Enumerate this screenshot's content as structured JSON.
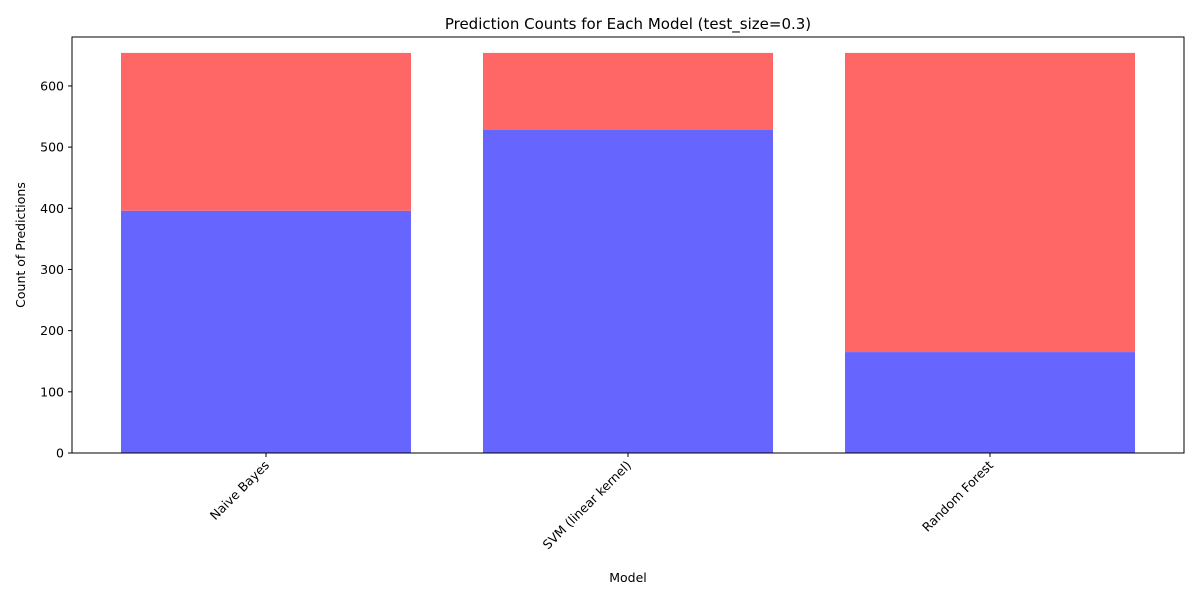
{
  "chart_data": {
    "type": "bar",
    "stacked": true,
    "title": "Prediction Counts for Each Model (test_size=0.3)",
    "xlabel": "Model",
    "ylabel": "Count of Predictions",
    "categories": [
      "Naive Bayes",
      "SVM (linear kernel)",
      "Random Forest"
    ],
    "series": [
      {
        "values": [
          396,
          528,
          165
        ],
        "color": "#6666ff"
      },
      {
        "values": [
          258,
          126,
          489
        ],
        "color": "#ff6666"
      }
    ],
    "ylim": [
      0,
      680
    ],
    "yticks": [
      0,
      100,
      200,
      300,
      400,
      500,
      600
    ],
    "grid": false,
    "xtick_rotation": 45
  }
}
